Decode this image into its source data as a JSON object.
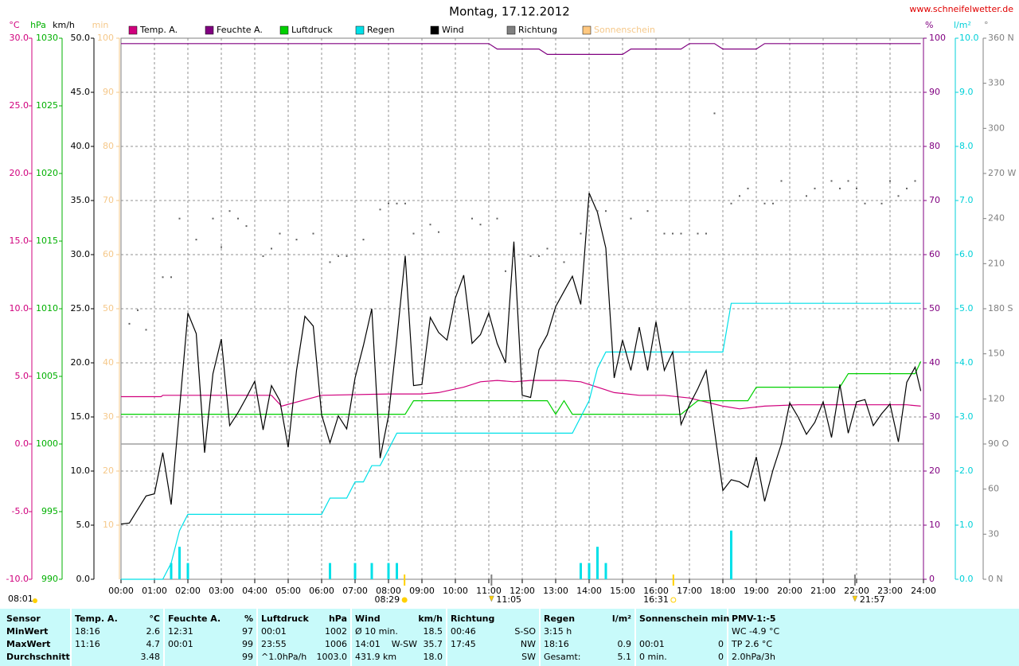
{
  "chart_data": {
    "type": "line",
    "title": "Montag, 17.12.2012",
    "source": "www.schneifelwetter.de",
    "xlim": [
      0,
      24
    ],
    "xticks": [
      {
        "value": 0,
        "label": "00:00"
      },
      {
        "value": 1,
        "label": "01:00"
      },
      {
        "value": 2,
        "label": "02:00"
      },
      {
        "value": 3,
        "label": "03:00"
      },
      {
        "value": 4,
        "label": "04:00"
      },
      {
        "value": 5,
        "label": "05:00"
      },
      {
        "value": 6,
        "label": "06:00"
      },
      {
        "value": 7,
        "label": "07:00"
      },
      {
        "value": 8,
        "label": "08:00"
      },
      {
        "value": 9,
        "label": "09:00"
      },
      {
        "value": 10,
        "label": "10:00"
      },
      {
        "value": 11,
        "label": "11:00"
      },
      {
        "value": 12,
        "label": "12:00"
      },
      {
        "value": 13,
        "label": "13:00"
      },
      {
        "value": 14,
        "label": "14:00"
      },
      {
        "value": 15,
        "label": "15:00"
      },
      {
        "value": 16,
        "label": "16:00"
      },
      {
        "value": 17,
        "label": "17:00"
      },
      {
        "value": 18,
        "label": "18:00"
      },
      {
        "value": 19,
        "label": "19:00"
      },
      {
        "value": 20,
        "label": "20:00"
      },
      {
        "value": 21,
        "label": "21:00"
      },
      {
        "value": 22,
        "label": "22:00"
      },
      {
        "value": 23,
        "label": "23:00"
      },
      {
        "value": 24,
        "label": "24:00"
      }
    ],
    "grid": true,
    "axes": [
      {
        "unit": "°C",
        "position": "left",
        "color": "#d0007d",
        "lim": [
          -10,
          30
        ],
        "ticks": [
          {
            "value": -10,
            "label": "-10.0"
          },
          {
            "value": -5,
            "label": "-5.0"
          },
          {
            "value": 0,
            "label": "0.0"
          },
          {
            "value": 5,
            "label": "5.0"
          },
          {
            "value": 10,
            "label": "10.0"
          },
          {
            "value": 15,
            "label": "15.0"
          },
          {
            "value": 20,
            "label": "20.0"
          },
          {
            "value": 25,
            "label": "25.0"
          },
          {
            "value": 30,
            "label": "30.0"
          }
        ]
      },
      {
        "unit": "hPa",
        "position": "left",
        "color": "#00b000",
        "lim": [
          990,
          1030
        ],
        "ticks": [
          990,
          995,
          1000,
          1005,
          1010,
          1015,
          1020,
          1025,
          1030
        ]
      },
      {
        "unit": "km/h",
        "position": "left",
        "color": "#000000",
        "grid": true,
        "lim": [
          0,
          50
        ],
        "ticks": [
          {
            "value": 0,
            "label": "0.0"
          },
          {
            "value": 5,
            "label": "5.0"
          },
          {
            "value": 10,
            "label": "10.0"
          },
          {
            "value": 15,
            "label": "15.0"
          },
          {
            "value": 20,
            "label": "20.0"
          },
          {
            "value": 25,
            "label": "25.0"
          },
          {
            "value": 30,
            "label": "30.0"
          },
          {
            "value": 35,
            "label": "35.0"
          },
          {
            "value": 40,
            "label": "40.0"
          },
          {
            "value": 45,
            "label": "45.0"
          },
          {
            "value": 50,
            "label": "50.0"
          }
        ]
      },
      {
        "unit": "min",
        "position": "left",
        "color": "#f5c88a",
        "lim": [
          0,
          100
        ],
        "ticks": [
          10,
          20,
          30,
          40,
          50,
          60,
          70,
          80,
          90,
          100
        ]
      },
      {
        "unit": "%",
        "position": "right",
        "color": "#800080",
        "lim": [
          0,
          100
        ],
        "ticks": [
          0,
          10,
          20,
          30,
          40,
          50,
          60,
          70,
          80,
          90,
          100
        ]
      },
      {
        "unit": "l/m²",
        "position": "right",
        "color": "#00d0d8",
        "lim": [
          0,
          10
        ],
        "ticks": [
          {
            "value": 0,
            "label": "0.0"
          },
          {
            "value": 1,
            "label": "1.0"
          },
          {
            "value": 2,
            "label": "2.0"
          },
          {
            "value": 3,
            "label": "3.0"
          },
          {
            "value": 4,
            "label": "4.0"
          },
          {
            "value": 5,
            "label": "5.0"
          },
          {
            "value": 6,
            "label": "6.0"
          },
          {
            "value": 7,
            "label": "7.0"
          },
          {
            "value": 8,
            "label": "8.0"
          },
          {
            "value": 9,
            "label": "9.0"
          },
          {
            "value": 10,
            "label": "10.0"
          }
        ]
      },
      {
        "unit": "°",
        "position": "right",
        "color": "#808080",
        "lim": [
          0,
          360
        ],
        "ticks": [
          {
            "value": 0,
            "label": "0 N"
          },
          30,
          60,
          {
            "value": 90,
            "label": "90 O"
          },
          120,
          150,
          {
            "value": 180,
            "label": "180 S"
          },
          210,
          240,
          {
            "value": 270,
            "label": "270 W"
          },
          300,
          330,
          {
            "value": 360,
            "label": "360 N"
          }
        ]
      }
    ],
    "reference_lines": [
      {
        "axis": "°C",
        "value": 0,
        "color": "#a0a0a0"
      }
    ],
    "series": [
      {
        "name": "Temp. A.",
        "color": "#d0007d",
        "axis": "°C",
        "mark": "line",
        "x": [
          0,
          1.2,
          1.25,
          4.5,
          4.8,
          6,
          8,
          9,
          9.5,
          10.25,
          10.75,
          11.25,
          11.75,
          12.25,
          13.25,
          13.75,
          14.25,
          14.75,
          15.5,
          16.25,
          17,
          18,
          18.5,
          19.25,
          20.25,
          22,
          23.5,
          23.92
        ],
        "values": [
          3.5,
          3.5,
          3.6,
          3.6,
          2.8,
          3.6,
          3.7,
          3.7,
          3.8,
          4.2,
          4.6,
          4.7,
          4.6,
          4.7,
          4.7,
          4.6,
          4.2,
          3.8,
          3.6,
          3.6,
          3.4,
          2.8,
          2.6,
          2.8,
          2.9,
          2.9,
          2.9,
          2.8
        ]
      },
      {
        "name": "Feuchte A.",
        "color": "#800080",
        "axis": "%",
        "mark": "line",
        "x": [
          0,
          11,
          11.25,
          12.5,
          12.75,
          15,
          15.25,
          16.75,
          17,
          17.75,
          18,
          19,
          19.25,
          23.92
        ],
        "values": [
          99,
          99,
          98,
          98,
          97,
          97,
          98,
          98,
          99,
          99,
          98,
          98,
          99,
          99
        ]
      },
      {
        "name": "Luftdruck",
        "color": "#00d000",
        "axis": "hPa",
        "mark": "line",
        "x": [
          0,
          8.5,
          8.75,
          12.75,
          13,
          13.25,
          13.5,
          16.75,
          17.25,
          18.75,
          19,
          21.5,
          21.75,
          23.75,
          23.92
        ],
        "values": [
          1002.2,
          1002.2,
          1003.2,
          1003.2,
          1002.2,
          1003.2,
          1002.2,
          1002.2,
          1003.2,
          1003.2,
          1004.2,
          1004.2,
          1005.2,
          1005.2,
          1006.1
        ]
      },
      {
        "name": "Regen",
        "color": "#00e0e8",
        "axis": "l/m²",
        "mark": "line",
        "x": [
          0,
          1.25,
          1.5,
          1.75,
          2,
          6,
          6.25,
          6.75,
          7,
          7.25,
          7.5,
          7.75,
          8,
          8.25,
          13.5,
          13.75,
          14,
          14.25,
          14.5,
          18,
          18.25,
          23.92
        ],
        "values": [
          0,
          0,
          0.3,
          0.9,
          1.2,
          1.2,
          1.5,
          1.5,
          1.8,
          1.8,
          2.1,
          2.1,
          2.4,
          2.7,
          2.7,
          3.0,
          3.3,
          3.9,
          4.2,
          4.2,
          5.1,
          5.1
        ],
        "bar_x": [
          1.5,
          1.75,
          2,
          6.25,
          7,
          7.5,
          8,
          8.25,
          13.75,
          14,
          14.25,
          14.5,
          18.25
        ],
        "bar_values": [
          0.3,
          0.6,
          0.3,
          0.3,
          0.3,
          0.3,
          0.3,
          0.3,
          0.3,
          0.3,
          0.6,
          0.3,
          0.9
        ]
      },
      {
        "name": "Wind",
        "color": "#000000",
        "axis": "km/h",
        "mark": "line",
        "x": [
          0,
          0.25,
          0.75,
          1,
          1.25,
          1.5,
          2,
          2.25,
          2.5,
          2.75,
          3,
          3.25,
          3.5,
          3.75,
          4,
          4.25,
          4.5,
          4.75,
          5,
          5.25,
          5.5,
          5.75,
          6,
          6.25,
          6.5,
          6.75,
          7,
          7.25,
          7.5,
          7.75,
          8,
          8.25,
          8.5,
          8.75,
          9,
          9.25,
          9.5,
          9.75,
          10,
          10.25,
          10.5,
          10.75,
          11,
          11.25,
          11.5,
          11.75,
          12,
          12.25,
          12.5,
          12.75,
          13,
          13.25,
          13.5,
          13.75,
          14,
          14.25,
          14.5,
          14.75,
          15,
          15.25,
          15.5,
          15.75,
          16,
          16.25,
          16.5,
          16.75,
          17,
          17.25,
          17.5,
          18,
          18.25,
          18.5,
          18.75,
          19,
          19.25,
          19.5,
          19.75,
          20,
          20.25,
          20.5,
          20.75,
          21,
          21.25,
          21.5,
          21.75,
          22,
          22.25,
          22.5,
          22.75,
          23,
          23.25,
          23.5,
          23.75,
          23.92
        ],
        "values": [
          5.1,
          5.2,
          7.7,
          7.9,
          11.7,
          6.9,
          24.6,
          22.7,
          11.7,
          19.0,
          22.2,
          14.2,
          15.4,
          16.8,
          18.3,
          13.8,
          17.9,
          16.5,
          12.2,
          19.3,
          24.3,
          23.4,
          15.2,
          12.6,
          15.1,
          13.9,
          18.6,
          21.6,
          25.0,
          11.2,
          15.1,
          22.2,
          29.9,
          17.9,
          18.0,
          24.2,
          22.8,
          22.1,
          26.0,
          28.1,
          21.8,
          22.6,
          24.6,
          21.8,
          20.0,
          31.2,
          17.0,
          16.8,
          21.2,
          22.6,
          25.2,
          26.6,
          28.0,
          25.4,
          35.7,
          33.9,
          30.6,
          18.6,
          22.1,
          19.3,
          23.3,
          19.3,
          23.8,
          19.3,
          21.0,
          14.3,
          16.1,
          17.6,
          19.3,
          8.2,
          9.2,
          9.0,
          8.5,
          11.3,
          7.2,
          10.1,
          12.5,
          16.3,
          15.0,
          13.4,
          14.5,
          16.4,
          13.1,
          18.0,
          13.5,
          16.4,
          16.6,
          14.2,
          15.3,
          16.2,
          12.7,
          18.2,
          19.6,
          17.4
        ]
      },
      {
        "name": "Richtung",
        "color": "#606060",
        "legend_color": "#808080",
        "axis": "°",
        "mark": "dots",
        "x": [
          0.25,
          0.5,
          0.75,
          1.25,
          1.5,
          1.75,
          2.25,
          2.75,
          3,
          3.25,
          3.5,
          3.75,
          4.25,
          4.5,
          4.75,
          5.25,
          5.75,
          6.25,
          6.5,
          6.75,
          7.25,
          7.75,
          8,
          8.25,
          8.5,
          8.75,
          9.25,
          9.5,
          10.5,
          10.75,
          11.25,
          11.5,
          11.75,
          12.25,
          12.5,
          12.75,
          13.25,
          13.75,
          14,
          14.25,
          14.5,
          15.25,
          15.75,
          16.25,
          16.5,
          16.75,
          17.25,
          17.5,
          17.75,
          18.25,
          18.5,
          18.75,
          19.25,
          19.5,
          19.75,
          20.5,
          20.75,
          21.25,
          21.5,
          21.75,
          22,
          22.25,
          22.75,
          23,
          23.25,
          23.5,
          23.75
        ],
        "values": [
          170,
          179,
          166,
          201,
          201,
          240,
          226,
          240,
          221,
          245,
          240,
          235,
          215,
          220,
          230,
          226,
          230,
          211,
          215,
          215,
          226,
          246,
          250,
          250,
          250,
          230,
          236,
          231,
          240,
          236,
          240,
          205,
          215,
          215,
          215,
          220,
          211,
          230,
          255,
          245,
          245,
          240,
          245,
          230,
          230,
          230,
          230,
          230,
          310,
          250,
          255,
          260,
          250,
          250,
          265,
          255,
          260,
          265,
          260,
          265,
          260,
          250,
          250,
          265,
          255,
          260,
          265
        ]
      },
      {
        "name": "Sonnenschein",
        "color": "#ffc880",
        "text_color": "#f5c88a",
        "axis": "min"
      }
    ],
    "annotations": [
      {
        "label": "08:29",
        "x": 8.48,
        "icon": "sunrise"
      },
      {
        "label": "11:05",
        "x": 11.08,
        "icon": "moon"
      },
      {
        "label": "16:31",
        "x": 16.52,
        "icon": "sunset"
      },
      {
        "label": "21:57",
        "x": 21.95,
        "icon": "moon"
      }
    ],
    "corner_note": "08:01"
  },
  "table": {
    "columns": [
      {
        "header": "Sensor"
      },
      {
        "header": "Temp. A.",
        "unit": "°C"
      },
      {
        "header": "Feuchte A.",
        "unit": "%"
      },
      {
        "header": "Luftdruck",
        "unit": "hPa"
      },
      {
        "header": "Wind",
        "unit": "km/h"
      },
      {
        "header": "Richtung"
      },
      {
        "header": "Regen",
        "unit": "l/m²"
      },
      {
        "header": "Sonnenschein min"
      },
      {
        "header": "PMV-1:-5"
      }
    ],
    "rows": [
      {
        "label": "MinWert",
        "cells": [
          {
            "left": "18:16",
            "right": "2.6"
          },
          {
            "left": "12:31",
            "right": "97"
          },
          {
            "left": "00:01",
            "right": "1002"
          },
          {
            "left": "Ø 10 min.",
            "right": "18.5"
          },
          {
            "left": "00:46",
            "right": "S-SO"
          },
          {
            "left": "3:15 h"
          },
          null,
          {
            "left": "WC -4.9 °C"
          }
        ]
      },
      {
        "label": "MaxWert",
        "cells": [
          {
            "left": "11:16",
            "right": "4.7"
          },
          {
            "left": "00:01",
            "right": "99"
          },
          {
            "left": "23:55",
            "right": "1006"
          },
          {
            "left": "14:01",
            "mid": "W-SW",
            "right": "35.7"
          },
          {
            "left": "17:45",
            "right": "NW"
          },
          {
            "left": "18:16",
            "right": "0.9"
          },
          {
            "left": "00:01",
            "right": "0"
          },
          {
            "left": "TP 2.6 °C"
          }
        ]
      },
      {
        "label": "Durchschnitt",
        "cells": [
          {
            "right": "3.48"
          },
          {
            "right": "99"
          },
          {
            "left": "^1.0hPa/h",
            "right": "1003.0"
          },
          {
            "left": "431.9 km",
            "right": "18.0"
          },
          {
            "right": "SW"
          },
          {
            "left": "Gesamt:",
            "right": "5.1"
          },
          {
            "left": "0 min.",
            "right": "0"
          },
          {
            "left": "2.0hPa/3h"
          }
        ]
      }
    ]
  }
}
